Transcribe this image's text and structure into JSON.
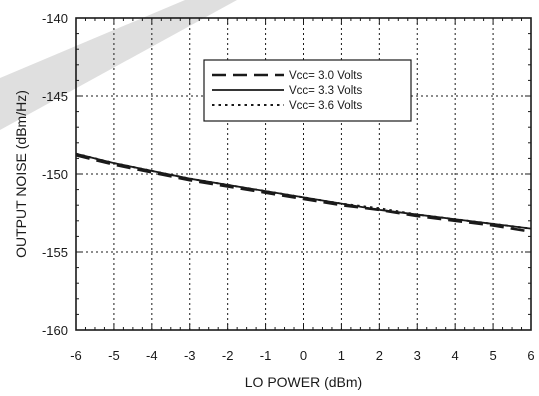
{
  "chart_data": {
    "type": "line",
    "title": "",
    "xlabel": "LO POWER (dBm)",
    "ylabel": "OUTPUT NOISE (dBm/Hz)",
    "xlim": [
      -6,
      6
    ],
    "ylim": [
      -160,
      -140
    ],
    "x_ticks": [
      -6,
      -5,
      -4,
      -3,
      -2,
      -1,
      0,
      1,
      2,
      3,
      4,
      5,
      6
    ],
    "y_ticks": [
      -160,
      -155,
      -150,
      -145,
      -140
    ],
    "x_tick_labels": [
      "-6",
      "-5",
      "-4",
      "-3",
      "-2",
      "-1",
      "0",
      "1",
      "2",
      "3",
      "4",
      "5",
      "6"
    ],
    "y_tick_labels": [
      "-160",
      "-155",
      "-150",
      "-145",
      "-140"
    ],
    "grid": true,
    "legend_position": "top-right",
    "x": [
      -6,
      -5,
      -4,
      -3,
      -2,
      -1,
      0,
      1,
      2,
      3,
      4,
      5,
      6
    ],
    "series": [
      {
        "name": "Vcc= 3.0 Volts",
        "style": "dashed",
        "values": [
          -148.8,
          -149.4,
          -149.9,
          -150.4,
          -150.8,
          -151.2,
          -151.6,
          -152.0,
          -152.3,
          -152.7,
          -153.0,
          -153.3,
          -153.7
        ]
      },
      {
        "name": "Vcc= 3.3 Volts",
        "style": "solid",
        "values": [
          -148.7,
          -149.3,
          -149.8,
          -150.3,
          -150.7,
          -151.1,
          -151.5,
          -151.9,
          -152.3,
          -152.6,
          -152.9,
          -153.2,
          -153.5
        ]
      },
      {
        "name": "Vcc= 3.6 Volts",
        "style": "dotted",
        "values": [
          -148.7,
          -149.3,
          -149.8,
          -150.3,
          -150.7,
          -151.1,
          -151.5,
          -151.9,
          -152.2,
          -152.6,
          -152.9,
          -153.2,
          -153.5
        ]
      }
    ]
  },
  "colors": {
    "line": "#1a1a1a",
    "watermark": "#d9d9d9",
    "background": "#ffffff"
  }
}
